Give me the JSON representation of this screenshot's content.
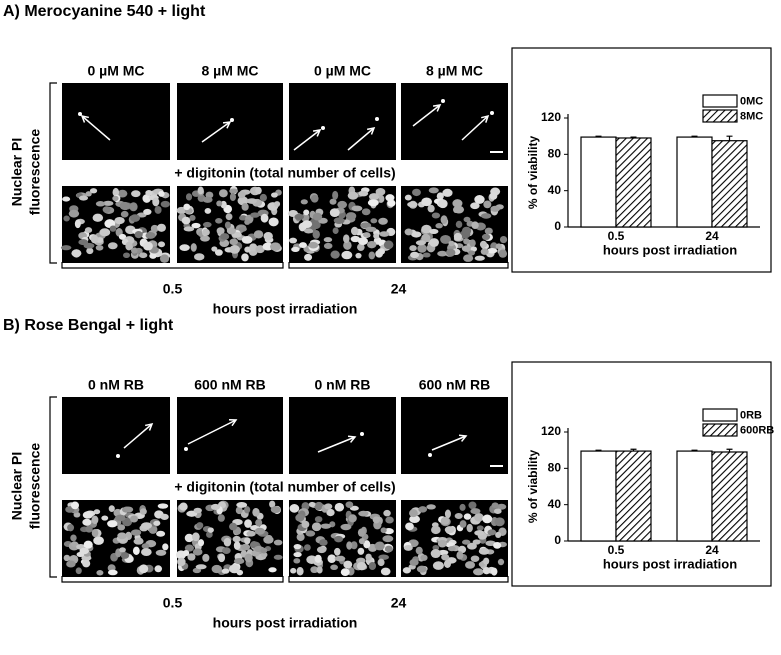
{
  "panels": [
    {
      "title": "A) Merocyanine 540 + light",
      "column_labels": [
        "0 µM MC",
        "8 µM MC",
        "0 µM MC",
        "8 µM MC"
      ],
      "row_label": [
        "Nuclear PI",
        "fluorescence"
      ],
      "middle_label": "+ digitonin (total number of cells)",
      "time_labels": [
        "0.5",
        "24"
      ],
      "x_label": "hours post irradiation"
    },
    {
      "title": "B) Rose Bengal + light",
      "column_labels": [
        "0 nM RB",
        "600 nM RB",
        "0 nM RB",
        "600 nM RB"
      ],
      "row_label": [
        "Nuclear PI",
        "fluorescence"
      ],
      "middle_label": "+ digitonin (total number of cells)",
      "time_labels": [
        "0.5",
        "24"
      ],
      "x_label": "hours post irradiation"
    }
  ],
  "chart_data": [
    {
      "type": "bar",
      "categories": [
        "0.5",
        "24"
      ],
      "series": [
        {
          "name": "0MC",
          "color": "#ffffff",
          "values": [
            99,
            99
          ],
          "errors": [
            1,
            1
          ]
        },
        {
          "name": "8MC",
          "color": "#000000",
          "pattern": "hatch",
          "values": [
            98,
            95
          ],
          "errors": [
            1,
            5
          ]
        }
      ],
      "ylim": [
        0,
        120
      ],
      "yticks": [
        0,
        40,
        80,
        120
      ],
      "ylabel": "% of viability",
      "xlabel": "hours post irradiation",
      "legend": "top-right"
    },
    {
      "type": "bar",
      "categories": [
        "0.5",
        "24"
      ],
      "series": [
        {
          "name": "0RB",
          "color": "#ffffff",
          "values": [
            99,
            99
          ],
          "errors": [
            1,
            1
          ]
        },
        {
          "name": "600RB",
          "color": "#000000",
          "pattern": "hatch",
          "values": [
            99,
            98
          ],
          "errors": [
            2,
            3
          ]
        }
      ],
      "ylim": [
        0,
        120
      ],
      "yticks": [
        0,
        40,
        80,
        120
      ],
      "ylabel": "% of viability",
      "xlabel": "hours post irradiation",
      "legend": "top-right"
    }
  ]
}
